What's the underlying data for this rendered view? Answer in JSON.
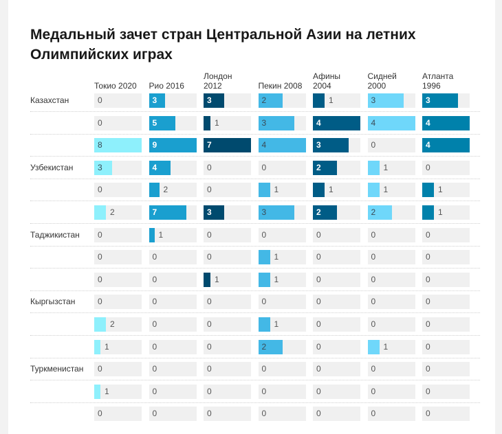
{
  "title": "Медальный зачет стран Центральной Азии на летних Олимпийских играх",
  "chart_data": {
    "type": "table",
    "title": "Медальный зачет стран Центральной Азии на летних Олимпийских играх",
    "columns": [
      {
        "label_line1": "Токио 2020",
        "label_line2": "",
        "color": "#8ef0fc",
        "dark": false
      },
      {
        "label_line1": "Рио 2016",
        "label_line2": "",
        "color": "#1a9fcf",
        "dark": true
      },
      {
        "label_line1": "Лондон",
        "label_line2": "2012",
        "color": "#004a6e",
        "dark": true
      },
      {
        "label_line1": "Пекин 2008",
        "label_line2": "",
        "color": "#43b8e6",
        "dark": false
      },
      {
        "label_line1": "Афины",
        "label_line2": "2004",
        "color": "#005c86",
        "dark": true
      },
      {
        "label_line1": "Сидней",
        "label_line2": "2000",
        "color": "#6fd7fa",
        "dark": false
      },
      {
        "label_line1": "Атланта",
        "label_line2": "1996",
        "color": "#0081ab",
        "dark": true
      }
    ],
    "countries": [
      {
        "name": "Казахстан",
        "rows": [
          [
            0,
            3,
            3,
            2,
            1,
            3,
            3
          ],
          [
            0,
            5,
            1,
            3,
            4,
            4,
            4
          ],
          [
            8,
            9,
            7,
            4,
            3,
            0,
            4
          ]
        ]
      },
      {
        "name": "Узбекистан",
        "rows": [
          [
            3,
            4,
            0,
            0,
            2,
            1,
            0
          ],
          [
            0,
            2,
            0,
            1,
            1,
            1,
            1
          ],
          [
            2,
            7,
            3,
            3,
            2,
            2,
            1
          ]
        ]
      },
      {
        "name": "Таджикистан",
        "rows": [
          [
            0,
            1,
            0,
            0,
            0,
            0,
            0
          ],
          [
            0,
            0,
            0,
            1,
            0,
            0,
            0
          ],
          [
            0,
            0,
            1,
            1,
            0,
            0,
            0
          ]
        ]
      },
      {
        "name": "Кыргызстан",
        "rows": [
          [
            0,
            0,
            0,
            0,
            0,
            0,
            0
          ],
          [
            2,
            0,
            0,
            1,
            0,
            0,
            0
          ],
          [
            1,
            0,
            0,
            2,
            0,
            1,
            0
          ]
        ]
      },
      {
        "name": "Туркменистан",
        "rows": [
          [
            0,
            0,
            0,
            0,
            0,
            0,
            0
          ],
          [
            1,
            0,
            0,
            0,
            0,
            0,
            0
          ],
          [
            0,
            0,
            0,
            0,
            0,
            0,
            0
          ]
        ]
      }
    ]
  }
}
